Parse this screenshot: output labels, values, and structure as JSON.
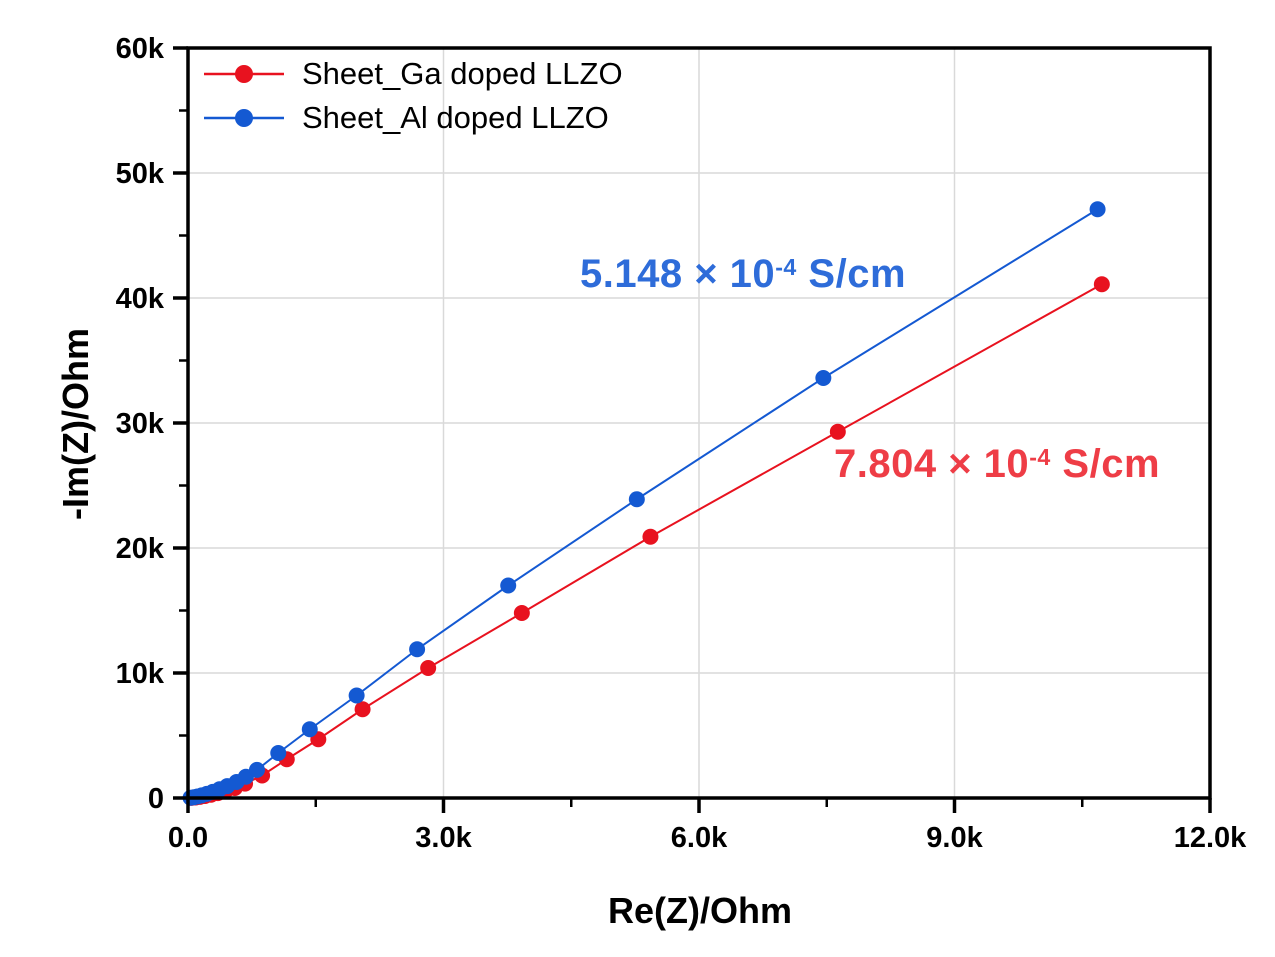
{
  "chart_data": {
    "type": "line",
    "title": "",
    "xlabel": "Re(Z)/Ohm",
    "ylabel": "-Im(Z)/Ohm",
    "xlim": [
      0,
      12000
    ],
    "ylim": [
      0,
      60000
    ],
    "x_ticks": {
      "major": [
        0,
        3000,
        6000,
        9000,
        12000
      ],
      "labels": [
        "0.0",
        "3.0k",
        "6.0k",
        "9.0k",
        "12.0k"
      ],
      "minor": [
        1500,
        4500,
        7500,
        10500
      ]
    },
    "y_ticks": {
      "major": [
        0,
        10000,
        20000,
        30000,
        40000,
        50000,
        60000
      ],
      "labels": [
        "0",
        "10k",
        "20k",
        "30k",
        "40k",
        "50k",
        "60k"
      ],
      "minor": [
        5000,
        15000,
        25000,
        35000,
        45000,
        55000
      ]
    },
    "grid": "major",
    "grid_color": "#d9d9d9",
    "frame_color": "#000000",
    "legend_position": "top-left-inside",
    "series": [
      {
        "name": "Sheet_Ga doped LLZO",
        "color": "#e8121f",
        "marker": "circle",
        "x": [
          40,
          90,
          140,
          200,
          270,
          350,
          440,
          550,
          670,
          870,
          1160,
          1530,
          2050,
          2820,
          3920,
          5430,
          7630,
          10730
        ],
        "y": [
          15,
          45,
          90,
          160,
          260,
          390,
          560,
          800,
          1150,
          1800,
          3100,
          4700,
          7100,
          10400,
          14800,
          20900,
          29300,
          41100
        ]
      },
      {
        "name": "Sheet_Al doped LLZO",
        "color": "#1459d2",
        "marker": "circle",
        "x": [
          30,
          70,
          110,
          160,
          220,
          290,
          370,
          460,
          570,
          680,
          810,
          1060,
          1430,
          1980,
          2690,
          3760,
          5270,
          7460,
          10680
        ],
        "y": [
          20,
          60,
          120,
          210,
          330,
          490,
          700,
          950,
          1280,
          1700,
          2250,
          3600,
          5500,
          8200,
          11900,
          17000,
          23900,
          33600,
          47100
        ]
      }
    ],
    "annotations": [
      {
        "refers_to": "Sheet_Al doped LLZO",
        "prefix": "5.148 × 10",
        "exponent": "-4",
        "suffix": " S/cm",
        "color": "#2e6cd9"
      },
      {
        "refers_to": "Sheet_Ga doped LLZO",
        "prefix": "7.804 × 10",
        "exponent": "-4",
        "suffix": " S/cm",
        "color": "#ee3d46"
      }
    ]
  }
}
